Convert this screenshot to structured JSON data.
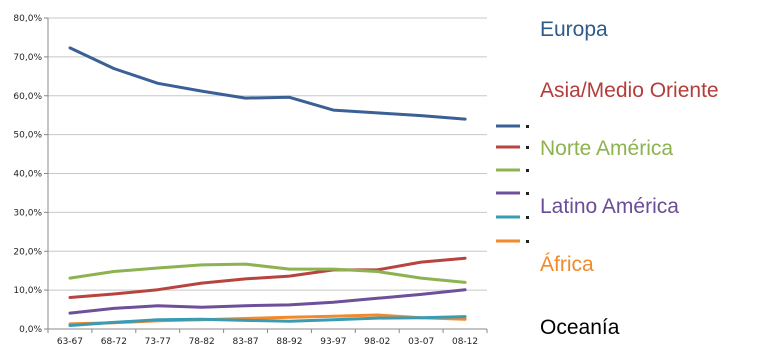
{
  "chart_data": {
    "type": "line",
    "categories": [
      "63-67",
      "68-72",
      "73-77",
      "78-82",
      "83-87",
      "88-92",
      "93-97",
      "98-02",
      "03-07",
      "08-12"
    ],
    "ylim": [
      0,
      80
    ],
    "y_ticks": [
      "0,0%",
      "10,0%",
      "20,0%",
      "30,0%",
      "40,0%",
      "50,0%",
      "60,0%",
      "70,0%",
      "80,0%"
    ],
    "grid": true,
    "legend_position": "right",
    "series": [
      {
        "name": "Europa",
        "color": "#3a6096",
        "values": [
          72.3,
          67.0,
          63.2,
          61.2,
          59.4,
          59.6,
          56.3,
          55.6,
          54.9,
          54.0
        ]
      },
      {
        "name": "Asia/Medio Oriente",
        "color": "#b84440",
        "values": [
          8.1,
          9.0,
          10.1,
          11.8,
          12.9,
          13.6,
          15.2,
          15.2,
          17.2,
          18.2
        ]
      },
      {
        "name": "Norte América",
        "color": "#8db351",
        "values": [
          13.1,
          14.8,
          15.7,
          16.5,
          16.7,
          15.4,
          15.4,
          14.8,
          13.1,
          12.0
        ]
      },
      {
        "name": "Latino América",
        "color": "#6e4f9a",
        "values": [
          4.1,
          5.3,
          6.0,
          5.6,
          6.0,
          6.2,
          6.9,
          7.9,
          8.9,
          10.1
        ]
      },
      {
        "name": "África",
        "color": "#f08a2c",
        "values": [
          1.3,
          1.6,
          2.1,
          2.4,
          2.7,
          3.0,
          3.3,
          3.6,
          2.9,
          2.5
        ]
      },
      {
        "name": "Oceanía",
        "color": "#3a9cb4",
        "values": [
          0.9,
          1.7,
          2.4,
          2.5,
          2.2,
          2.0,
          2.4,
          2.8,
          2.9,
          3.2
        ]
      }
    ]
  },
  "legend": [
    {
      "label": "Europa",
      "color": "#2e5b8a"
    },
    {
      "label": "Asia/Medio Oriente",
      "color": "#b23d3a"
    },
    {
      "label": "Norte América",
      "color": "#8db351"
    },
    {
      "label": "Latino América",
      "color": "#6a4d96"
    },
    {
      "label": "África",
      "color": "#f08a2c"
    },
    {
      "label": "Oceanía",
      "color": "#000000"
    }
  ]
}
